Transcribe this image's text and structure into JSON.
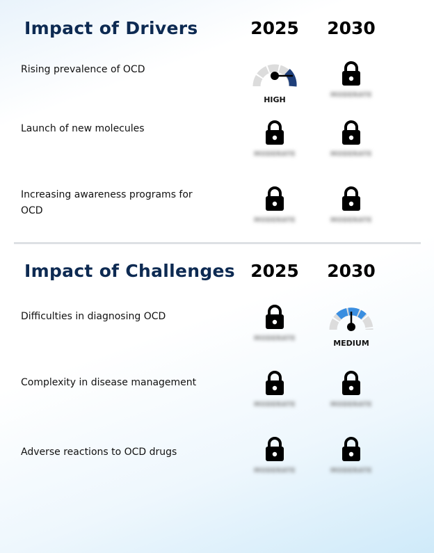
{
  "drivers": {
    "title": "Impact of Drivers",
    "year1": "2025",
    "year2": "2030",
    "rows": [
      {
        "label": "Rising prevalence of OCD",
        "y2025": {
          "type": "gauge",
          "level": "HIGH"
        },
        "y2030": {
          "type": "lock",
          "hidden": "MODERATE"
        }
      },
      {
        "label": "Launch of new molecules",
        "y2025": {
          "type": "lock",
          "hidden": "MODERATE"
        },
        "y2030": {
          "type": "lock",
          "hidden": "MODERATE"
        }
      },
      {
        "label": "Increasing awareness programs for OCD",
        "y2025": {
          "type": "lock",
          "hidden": "MODERATE"
        },
        "y2030": {
          "type": "lock",
          "hidden": "MODERATE"
        }
      }
    ]
  },
  "challenges": {
    "title": "Impact of Challenges",
    "year1": "2025",
    "year2": "2030",
    "rows": [
      {
        "label": "Difficulties in diagnosing OCD",
        "y2025": {
          "type": "lock",
          "hidden": "MODERATE"
        },
        "y2030": {
          "type": "gauge",
          "level": "MEDIUM"
        }
      },
      {
        "label": "Complexity in disease management",
        "y2025": {
          "type": "lock",
          "hidden": "MODERATE"
        },
        "y2030": {
          "type": "lock",
          "hidden": "MODERATE"
        }
      },
      {
        "label": "Adverse reactions to OCD drugs",
        "y2025": {
          "type": "lock",
          "hidden": "MODERATE"
        },
        "y2030": {
          "type": "lock",
          "hidden": "MODERATE"
        }
      }
    ]
  },
  "colors": {
    "title": "#0d2a52",
    "gauge_high": "#1f3f7a",
    "gauge_medium": "#3a8ee0",
    "gauge_track": "#dcdcdc"
  },
  "icons": [
    "lock-icon",
    "gauge-icon"
  ]
}
